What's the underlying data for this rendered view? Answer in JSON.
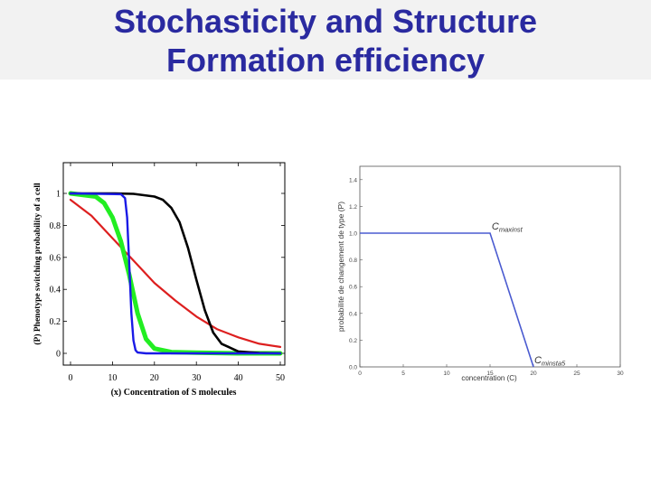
{
  "slide": {
    "title_line1": "Stochasticity and Structure",
    "title_line2": "Formation efficiency"
  },
  "colors": {
    "title": "#2a2aa0",
    "black": "#000000",
    "red": "#dd1f1f",
    "green": "#22ee22",
    "blue": "#1a1ae6",
    "right_line": "#4a5bd0"
  },
  "chart_data": [
    {
      "type": "line",
      "xlabel": "(x) Concentration of S molecules",
      "ylabel": "(P) Phenotype switching probability of a cell",
      "xlim": [
        0,
        50
      ],
      "ylim": [
        0,
        1
      ],
      "xticks": [
        "0",
        "10",
        "20",
        "30",
        "40",
        "50"
      ],
      "yticks": [
        "0",
        "0.2",
        "0.4",
        "0.6",
        "0.8",
        "1"
      ],
      "series": [
        {
          "color": "black",
          "x": [
            0,
            10,
            15,
            20,
            22,
            24,
            26,
            28,
            30,
            32,
            34,
            36,
            40,
            45,
            50
          ],
          "y": [
            1.0,
            1.0,
            0.997,
            0.98,
            0.96,
            0.91,
            0.82,
            0.66,
            0.46,
            0.27,
            0.13,
            0.06,
            0.012,
            0.002,
            0.0
          ]
        },
        {
          "color": "red",
          "x": [
            0,
            5,
            10,
            15,
            20,
            25,
            30,
            35,
            40,
            45,
            50
          ],
          "y": [
            0.96,
            0.86,
            0.72,
            0.58,
            0.44,
            0.33,
            0.23,
            0.15,
            0.1,
            0.06,
            0.04
          ]
        },
        {
          "color": "green",
          "x": [
            0,
            6,
            8,
            10,
            12,
            14,
            16,
            18,
            20,
            24,
            30,
            40,
            50
          ],
          "y": [
            1.0,
            0.98,
            0.94,
            0.85,
            0.7,
            0.49,
            0.25,
            0.09,
            0.03,
            0.008,
            0.004,
            0.0,
            0.0
          ]
        },
        {
          "color": "blue",
          "x": [
            0,
            12,
            13,
            13.5,
            14,
            14.5,
            15,
            15.5,
            16,
            18,
            50
          ],
          "y": [
            1.0,
            0.995,
            0.97,
            0.85,
            0.55,
            0.25,
            0.08,
            0.02,
            0.005,
            0.0,
            0.0
          ]
        }
      ]
    },
    {
      "type": "line",
      "xlabel": "concentration (C)",
      "ylabel": "probabilité de changement de type (P)",
      "xlim": [
        0,
        30
      ],
      "ylim": [
        0,
        1.5
      ],
      "xticks": [
        "0",
        "5",
        "10",
        "15",
        "20",
        "25",
        "30"
      ],
      "yticks": [
        "0.0",
        "0.2",
        "0.4",
        "0.6",
        "0.8",
        "1.0",
        "1.2",
        "1.4"
      ],
      "series": [
        {
          "color": "right_line",
          "x": [
            0,
            15,
            20
          ],
          "y": [
            1.0,
            1.0,
            0.0
          ]
        }
      ],
      "annotations": [
        {
          "label": "C",
          "sub": "maxinst",
          "x": 15.2,
          "y": 1.02
        },
        {
          "label": "C",
          "sub": "minsta5",
          "x": 20.1,
          "y": 0.02
        }
      ]
    }
  ]
}
